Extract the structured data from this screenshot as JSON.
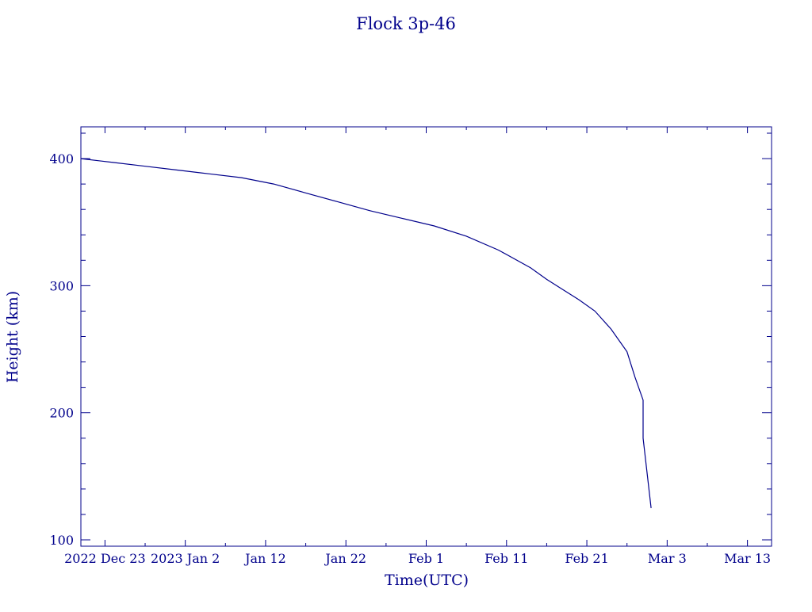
{
  "chart_data": {
    "type": "line",
    "title": "Flock 3p-46",
    "xlabel": "Time(UTC)",
    "ylabel": "Height (km)",
    "color": "#00008b",
    "x_range": [
      "2022-12-20",
      "2023-03-16"
    ],
    "ylim": [
      95,
      425
    ],
    "grid": false,
    "legend": "none",
    "x_ticks": [
      {
        "date": "2022-12-23",
        "label": "2022 Dec 23"
      },
      {
        "date": "2023-01-02",
        "label": "2023 Jan  2"
      },
      {
        "date": "2023-01-12",
        "label": "Jan 12"
      },
      {
        "date": "2023-01-22",
        "label": "Jan 22"
      },
      {
        "date": "2023-02-01",
        "label": "Feb  1"
      },
      {
        "date": "2023-02-11",
        "label": "Feb 11"
      },
      {
        "date": "2023-02-21",
        "label": "Feb 21"
      },
      {
        "date": "2023-03-03",
        "label": "Mar  3"
      },
      {
        "date": "2023-03-13",
        "label": "Mar 13"
      }
    ],
    "y_ticks": [
      {
        "value": 100,
        "label": "100"
      },
      {
        "value": 200,
        "label": "200"
      },
      {
        "value": 300,
        "label": "300"
      },
      {
        "value": 400,
        "label": "400"
      }
    ],
    "series": [
      {
        "x": [
          "2022-12-20",
          "2022-12-24",
          "2022-12-28",
          "2023-01-01",
          "2023-01-05",
          "2023-01-09",
          "2023-01-13",
          "2023-01-17",
          "2023-01-21",
          "2023-01-25",
          "2023-01-29",
          "2023-02-02",
          "2023-02-06",
          "2023-02-10",
          "2023-02-14",
          "2023-02-16",
          "2023-02-18",
          "2023-02-20",
          "2023-02-22",
          "2023-02-24",
          "2023-02-26",
          "2023-02-27",
          "2023-02-28",
          "2023-02-28",
          "2023-03-01"
        ],
        "y": [
          400,
          397,
          394,
          391,
          388,
          385,
          380,
          373,
          366,
          359,
          353,
          347,
          339,
          328,
          314,
          305,
          297,
          289,
          280,
          266,
          248,
          228,
          210,
          180,
          125
        ]
      }
    ]
  }
}
